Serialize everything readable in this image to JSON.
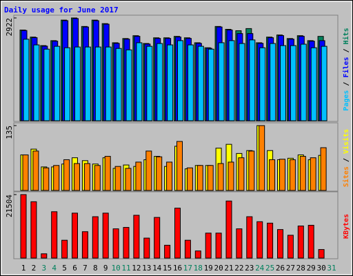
{
  "chart_data": [
    {
      "type": "bar",
      "title": "Daily usage for June 2017",
      "legend_separator": " / ",
      "ylim": [
        0,
        2922
      ],
      "yticks": [
        2922
      ],
      "series": [
        {
          "name": "Hits",
          "color": "#00805c",
          "values": [
            2579,
            2378,
            2136,
            2277,
            2861,
            2922,
            2680,
            2861,
            2761,
            2217,
            2337,
            2418,
            2196,
            2358,
            2358,
            2398,
            2358,
            2217,
            2075,
            2680,
            2599,
            2559,
            2620,
            2217,
            2378,
            2438,
            2337,
            2418,
            2277,
            2398,
            null
          ]
        },
        {
          "name": "Files",
          "color": "#0000ff",
          "values": [
            2565,
            2362,
            2120,
            2262,
            2845,
            2905,
            2665,
            2845,
            2745,
            2200,
            2320,
            2400,
            2180,
            2340,
            2340,
            2380,
            2340,
            2200,
            2060,
            2665,
            2580,
            2478,
            2478,
            2200,
            2360,
            2420,
            2320,
            2400,
            2262,
            2277,
            null
          ]
        },
        {
          "name": "Pages",
          "color": "#00c0ff",
          "values": [
            2317,
            2156,
            2035,
            2116,
            2075,
            2096,
            2096,
            2096,
            2096,
            2055,
            2015,
            2217,
            2116,
            2196,
            2156,
            2277,
            2156,
            2116,
            2035,
            2217,
            2277,
            2196,
            2297,
            2075,
            2196,
            2136,
            2136,
            2176,
            2075,
            2116,
            null
          ]
        }
      ]
    },
    {
      "type": "bar",
      "legend_separator": " / ",
      "ylim": [
        0,
        135
      ],
      "yticks": [
        135
      ],
      "series": [
        {
          "name": "Visits",
          "color": "#ffff00",
          "values": [
            74,
            86,
            49,
            49,
            55,
            68,
            62,
            55,
            68,
            46,
            53,
            50,
            64,
            71,
            50,
            92,
            45,
            52,
            52,
            88,
            96,
            77,
            83,
            135,
            83,
            64,
            67,
            74,
            64,
            73,
            null
          ]
        },
        {
          "name": "Sites",
          "color": "#ff8000",
          "values": [
            74,
            82,
            47,
            52,
            64,
            56,
            56,
            52,
            71,
            50,
            46,
            59,
            82,
            70,
            59,
            102,
            47,
            52,
            52,
            56,
            59,
            68,
            82,
            135,
            64,
            65,
            64,
            71,
            68,
            89,
            null
          ]
        }
      ]
    },
    {
      "type": "bar",
      "ylim": [
        0,
        21504
      ],
      "yticks": [
        21504
      ],
      "categories": [
        "1",
        "2",
        "3",
        "4",
        "5",
        "6",
        "7",
        "8",
        "9",
        "10",
        "11",
        "12",
        "13",
        "14",
        "15",
        "16",
        "17",
        "18",
        "19",
        "20",
        "21",
        "22",
        "23",
        "24",
        "25",
        "26",
        "27",
        "28",
        "29",
        "30",
        "31"
      ],
      "category_colors": [
        "#000000",
        "#000000",
        "#00805c",
        "#00805c",
        "#000000",
        "#000000",
        "#000000",
        "#000000",
        "#000000",
        "#00805c",
        "#00805c",
        "#000000",
        "#000000",
        "#000000",
        "#000000",
        "#000000",
        "#00805c",
        "#00805c",
        "#000000",
        "#000000",
        "#000000",
        "#000000",
        "#000000",
        "#00805c",
        "#00805c",
        "#000000",
        "#000000",
        "#000000",
        "#000000",
        "#000000",
        "#00805c"
      ],
      "series": [
        {
          "name": "KBytes",
          "color": "#ff0000",
          "values": [
            21504,
            19086,
            1450,
            15704,
            6040,
            15221,
            8939,
            14013,
            15221,
            9906,
            10389,
            14496,
            6765,
            13771,
            4349,
            16912,
            6040,
            2416,
            8456,
            8456,
            19328,
            9906,
            14013,
            12322,
            11838,
            9664,
            7731,
            10872,
            11114,
            2899,
            null
          ]
        }
      ]
    }
  ]
}
